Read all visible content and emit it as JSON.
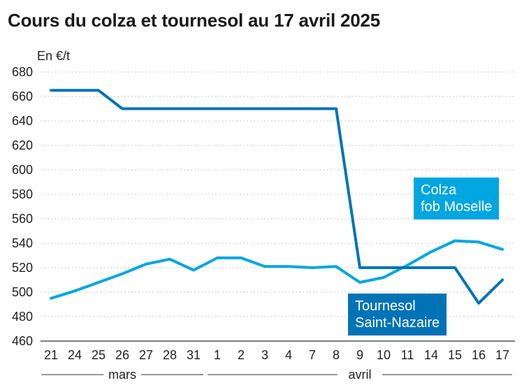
{
  "chart_data": {
    "type": "line",
    "title": "Cours du colza et tournesol au 17 avril 2025",
    "ylabel": "En €/t",
    "ylim": [
      460,
      680
    ],
    "yticks": [
      460,
      480,
      500,
      520,
      540,
      560,
      580,
      600,
      620,
      640,
      660,
      680
    ],
    "categories": [
      "21",
      "24",
      "25",
      "26",
      "27",
      "28",
      "31",
      "1",
      "2",
      "3",
      "4",
      "7",
      "8",
      "9",
      "10",
      "11",
      "14",
      "15",
      "16",
      "17"
    ],
    "months": [
      {
        "label": "mars",
        "from": 0,
        "to": 6
      },
      {
        "label": "avril",
        "from": 7,
        "to": 19
      }
    ],
    "series": [
      {
        "name": "Colza\nfob Moselle",
        "color": "#00a6e0",
        "values": [
          495,
          501,
          508,
          515,
          523,
          527,
          518,
          528,
          528,
          521,
          521,
          520,
          521,
          508,
          512,
          522,
          533,
          542,
          541,
          535
        ]
      },
      {
        "name": "Tournesol\nSaint-Nazaire",
        "color": "#0073b7",
        "values": [
          665,
          665,
          665,
          650,
          650,
          650,
          650,
          650,
          650,
          650,
          650,
          650,
          650,
          520,
          520,
          520,
          520,
          520,
          491,
          510
        ]
      }
    ],
    "grid": "horizontal dotted"
  }
}
